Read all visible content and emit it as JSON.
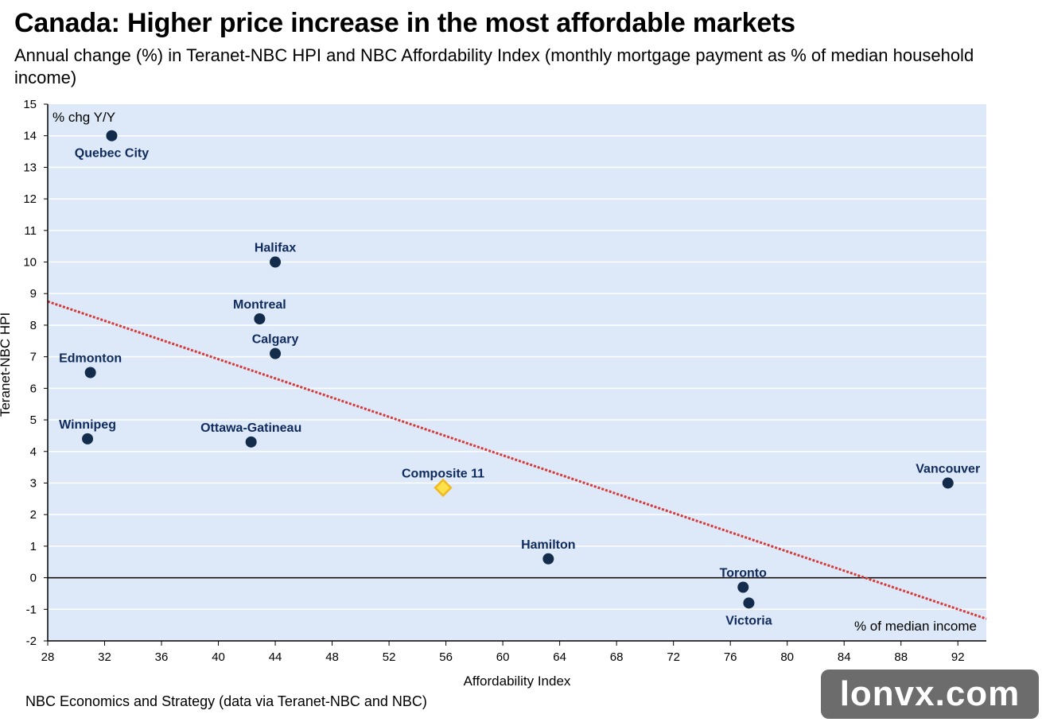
{
  "header": {
    "title": "Canada: Higher price increase in the most affordable markets",
    "subtitle": "Annual change (%) in Teranet-NBC HPI and NBC Affordability Index (monthly mortgage payment as % of median household income)"
  },
  "footer": {
    "source": "NBC Economics and Strategy (data via Teranet-NBC and NBC)"
  },
  "watermark": "lonvx.com",
  "colors": {
    "plot_bg": "#dde9f8",
    "point": "#142c4c",
    "composite": "#fde14a",
    "composite_edge": "#f2b820",
    "trendline": "#d43a3a"
  },
  "chart_data": {
    "type": "scatter",
    "xlabel": "Affordability Index",
    "ylabel": "Teranet-NBC HPI",
    "y_unit_note": "% chg Y/Y",
    "x_unit_note": "% of median income",
    "xlim": [
      28,
      94
    ],
    "ylim": [
      -2,
      15
    ],
    "xticks": [
      28,
      32,
      36,
      40,
      44,
      48,
      52,
      56,
      60,
      64,
      68,
      72,
      76,
      80,
      84,
      88,
      92
    ],
    "yticks": [
      -2,
      -1,
      0,
      1,
      2,
      3,
      4,
      5,
      6,
      7,
      8,
      9,
      10,
      11,
      12,
      13,
      14,
      15
    ],
    "grid": "horizontal",
    "points": [
      {
        "label": "Quebec City",
        "x": 32.5,
        "y": 14.0
      },
      {
        "label": "Halifax",
        "x": 44.0,
        "y": 10.0
      },
      {
        "label": "Montreal",
        "x": 42.9,
        "y": 8.2
      },
      {
        "label": "Calgary",
        "x": 44.0,
        "y": 7.1
      },
      {
        "label": "Edmonton",
        "x": 31.0,
        "y": 6.5
      },
      {
        "label": "Winnipeg",
        "x": 30.8,
        "y": 4.4
      },
      {
        "label": "Ottawa-Gatineau",
        "x": 42.3,
        "y": 4.3
      },
      {
        "label": "Composite 11",
        "x": 55.8,
        "y": 2.85,
        "highlight": true
      },
      {
        "label": "Vancouver",
        "x": 91.3,
        "y": 3.0
      },
      {
        "label": "Hamilton",
        "x": 63.2,
        "y": 0.6
      },
      {
        "label": "Toronto",
        "x": 76.9,
        "y": -0.3
      },
      {
        "label": "Victoria",
        "x": 77.3,
        "y": -0.8
      }
    ],
    "trendline": {
      "x": [
        28,
        94
      ],
      "y": [
        8.75,
        -1.3
      ]
    }
  }
}
